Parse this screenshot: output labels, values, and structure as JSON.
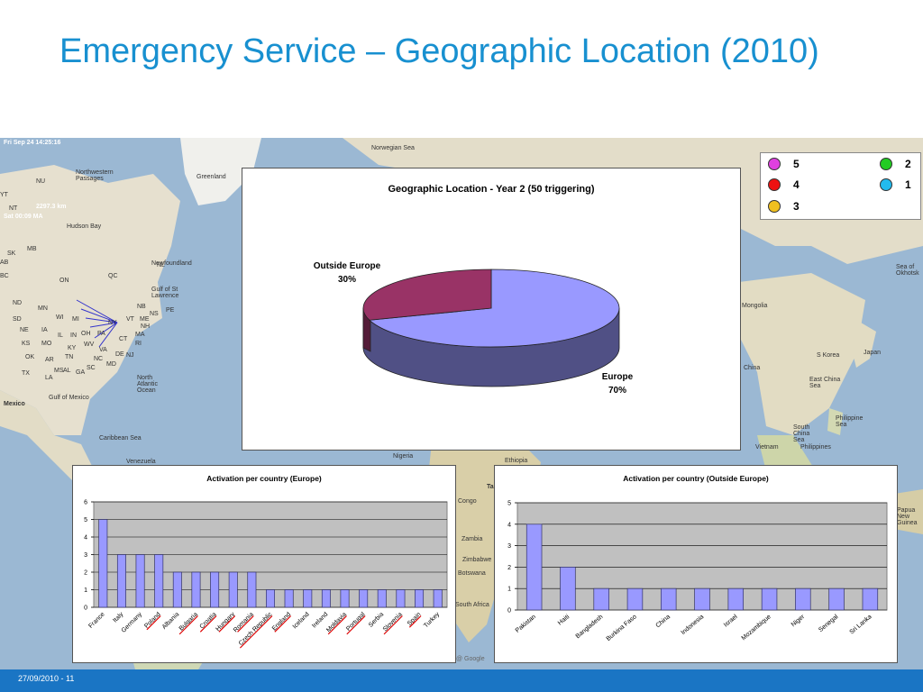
{
  "slide_title": "Emergency Service – Geographic Location (2010)",
  "footer_text": "27/09/2010 - 11",
  "map": {
    "labels": [
      "Greenland",
      "Northwestern Passages",
      "Hudson Bay",
      "Norwegian Sea",
      "North Atlantic Ocean",
      "Gulf of Mexico",
      "Mexico",
      "Caribbean Sea",
      "Venezuela",
      "Nigeria",
      "Ethiopia",
      "Congo",
      "Zambia",
      "Zimbabwe",
      "Botswana",
      "South Africa",
      "Mongolia",
      "China",
      "Japan",
      "S Korea",
      "East China Sea",
      "Philippine Sea",
      "South China Sea",
      "Vietnam",
      "Philippines",
      "Papua New Guinea",
      "Sea of Okhotsk",
      "Newfoundland",
      "Gulf of St Lawrence",
      "NL",
      "NB",
      "NS",
      "PE",
      "ME",
      "VT",
      "NH",
      "NY",
      "MA",
      "CT",
      "RI",
      "PA",
      "NJ",
      "DE",
      "MD",
      "VA",
      "WV",
      "OH",
      "IN",
      "IL",
      "MI",
      "WI",
      "MN",
      "ND",
      "SD",
      "NE",
      "KS",
      "MO",
      "KY",
      "TN",
      "NC",
      "SC",
      "GA",
      "AL",
      "MS",
      "AR",
      "LA",
      "OK",
      "TX",
      "IA",
      "MB",
      "SK",
      "AB",
      "BC",
      "NU",
      "YT",
      "NT",
      "ON",
      "QC",
      "@ Google",
      "Ta"
    ],
    "overlay_lines": [
      "Fri Sep 24 14:25:16",
      "2297.3 km",
      "Sat 00:09 MA"
    ]
  },
  "legend": {
    "items": [
      {
        "label": "5",
        "color": "#e040e0"
      },
      {
        "label": "2",
        "color": "#22cc22"
      },
      {
        "label": "4",
        "color": "#ee1111"
      },
      {
        "label": "1",
        "color": "#22bbee"
      },
      {
        "label": "3",
        "color": "#f0c020"
      }
    ]
  },
  "chart_data": [
    {
      "type": "pie",
      "title": "Geographic Location - Year 2 (50 triggering)",
      "slices": [
        {
          "name": "Outside Europe",
          "percent": "30%",
          "value": 30,
          "color": "#993366"
        },
        {
          "name": "Europe",
          "percent": "70%",
          "value": 70,
          "color": "#9999ff"
        }
      ]
    },
    {
      "type": "bar",
      "title": "Activation per country (Europe)",
      "categories": [
        "France",
        "Italy",
        "Germany",
        "Poland",
        "Albania",
        "Bulgaria",
        "Croatia",
        "Hungary",
        "Romania",
        "Czech Republic",
        "England",
        "Iceland",
        "Ireland",
        "Moldavia",
        "Portugal",
        "Serbia",
        "Slovenia",
        "Spain",
        "Turkey"
      ],
      "underlined": [
        "Poland",
        "Bulgaria",
        "Croatia",
        "Hungary",
        "Romania",
        "Czech Republic",
        "England",
        "Moldavia",
        "Portugal",
        "Slovenia",
        "Spain"
      ],
      "values": [
        5,
        3,
        3,
        3,
        2,
        2,
        2,
        2,
        2,
        1,
        1,
        1,
        1,
        1,
        1,
        1,
        1,
        1,
        1
      ],
      "ylim": [
        0,
        6
      ],
      "yticks": [
        "0",
        "1",
        "2",
        "3",
        "4",
        "5",
        "6"
      ],
      "bar_color": "#9999ff",
      "grid": true
    },
    {
      "type": "bar",
      "title": "Activation per country (Outside Europe)",
      "categories": [
        "Pakistan",
        "Haiti",
        "Bangladesh",
        "Burkina Faso",
        "China",
        "Indonesia",
        "Israel",
        "Mozambique",
        "Niger",
        "Senegal",
        "Sri Lanka"
      ],
      "underlined": [],
      "values": [
        4,
        2,
        1,
        1,
        1,
        1,
        1,
        1,
        1,
        1,
        1
      ],
      "ylim": [
        0,
        5
      ],
      "yticks": [
        "0",
        "1",
        "2",
        "3",
        "4",
        "5"
      ],
      "bar_color": "#9999ff",
      "grid": true
    }
  ]
}
